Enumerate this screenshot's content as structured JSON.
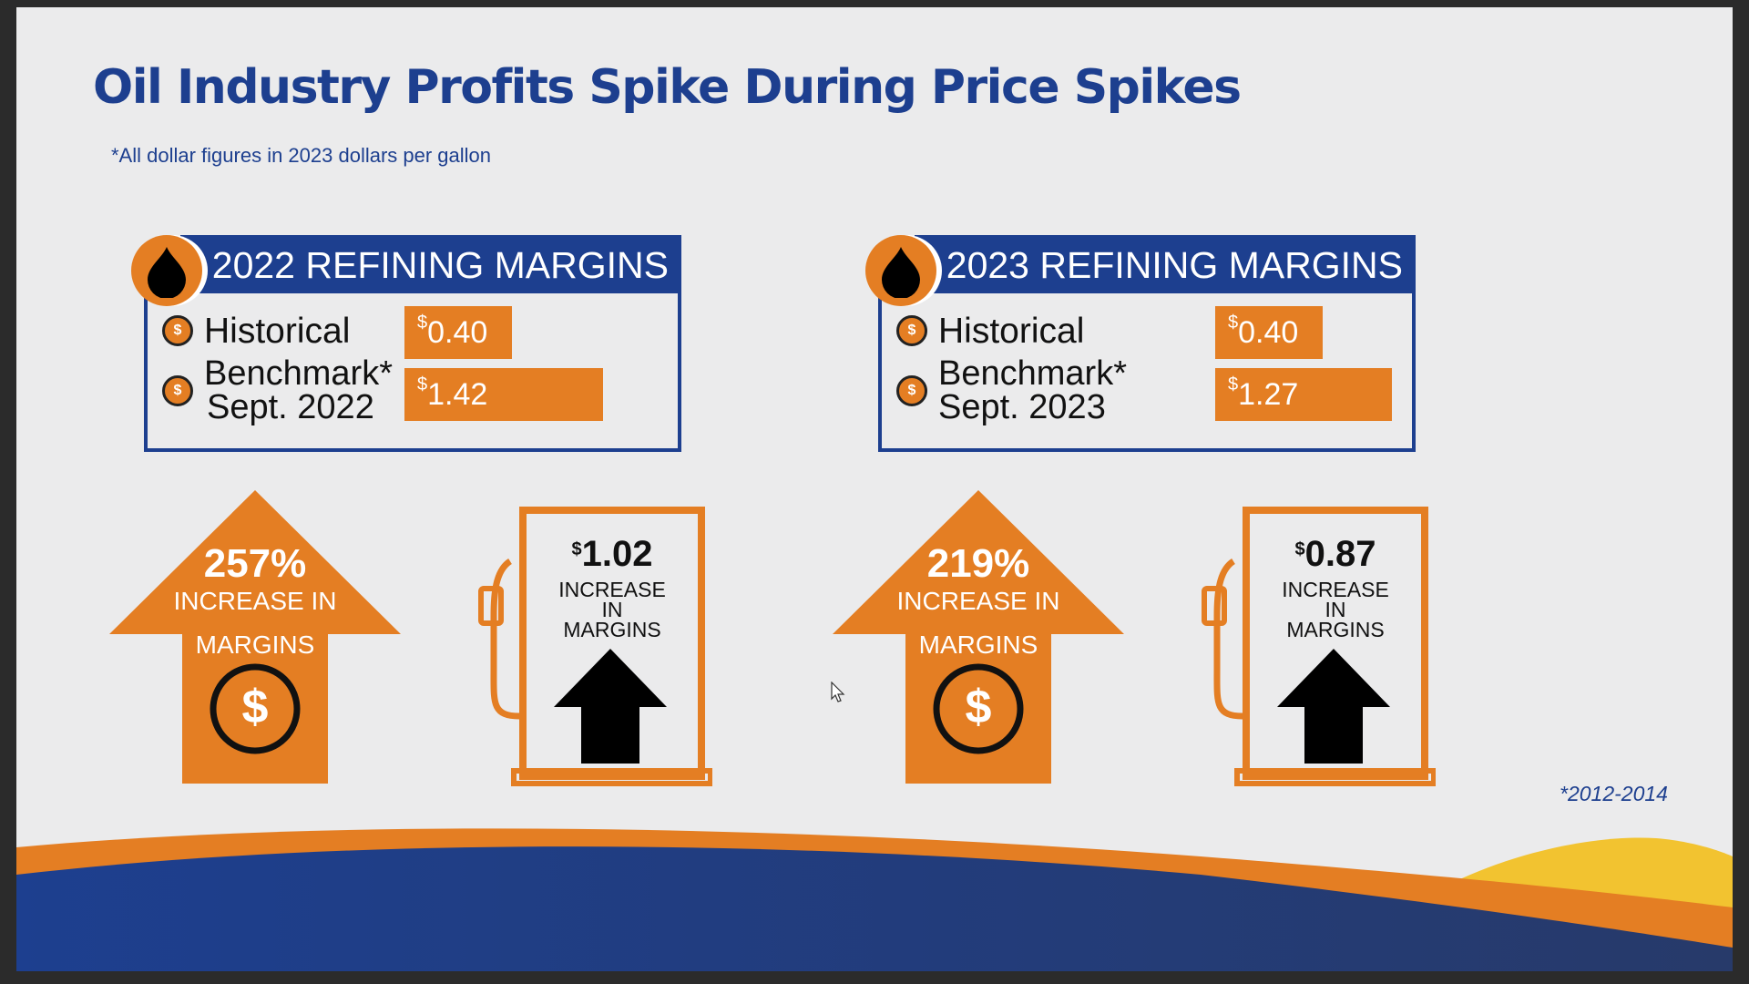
{
  "slide": {
    "title": "Oil Industry Profits Spike During Price Spikes",
    "subtitle": "*All dollar figures in 2023 dollars per gallon",
    "footnote": "*2012-2014"
  },
  "panels": [
    {
      "header": "2022 REFINING MARGINS",
      "historical_label": "Historical",
      "historical_value": "0.40",
      "benchmark_label_line1": "Benchmark*",
      "benchmark_label_line2": "Sept. 2022",
      "benchmark_value": "1.42",
      "currency_symbol": "$",
      "increase_percent": "257%",
      "increase_text": "INCREASE IN",
      "margins_text": "MARGINS",
      "increase_amount": "1.02",
      "pump_line1": "INCREASE",
      "pump_line2": "IN",
      "pump_line3": "MARGINS"
    },
    {
      "header": "2023 REFINING MARGINS",
      "historical_label": "Historical",
      "historical_value": "0.40",
      "benchmark_label_line1": "Benchmark*",
      "benchmark_label_line2": "Sept. 2023",
      "benchmark_value": "1.27",
      "currency_symbol": "$",
      "increase_percent": "219%",
      "increase_text": "INCREASE IN",
      "margins_text": "MARGINS",
      "increase_amount": "0.87",
      "pump_line1": "INCREASE",
      "pump_line2": "IN",
      "pump_line3": "MARGINS"
    }
  ],
  "colors": {
    "brand_blue": "#1d3f8f",
    "brand_orange": "#e47e23",
    "accent_yellow": "#f2c330"
  },
  "icons": [
    "oil-drop-icon",
    "dollar-coin-icon",
    "up-arrow-icon",
    "gas-pump-icon",
    "mouse-cursor-icon"
  ]
}
